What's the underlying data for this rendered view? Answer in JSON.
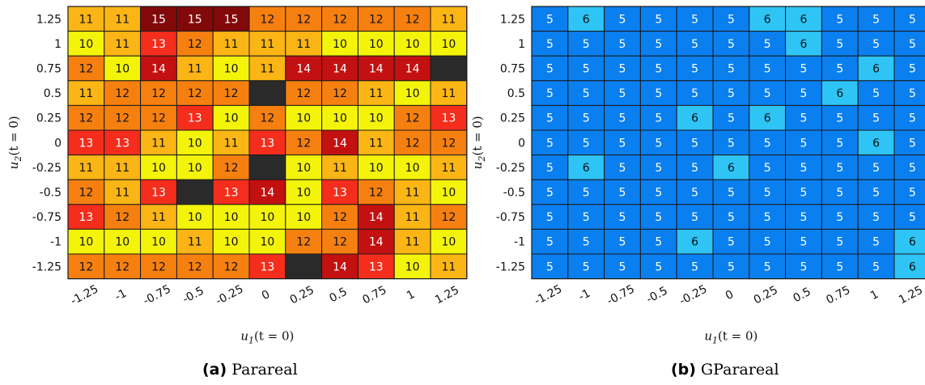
{
  "chart_data": [
    {
      "type": "heatmap",
      "caption_tag": "(a)",
      "caption": "Parareal",
      "xlabel": "u1(t = 0)",
      "ylabel": "u2(t = 0)",
      "xlabel_main": "u",
      "xlabel_sub": "1",
      "xlabel_rest": "(t = 0)",
      "ylabel_main": "u",
      "ylabel_sub": "2",
      "ylabel_rest": "(t = 0)",
      "x_ticks": [
        "-1.25",
        "-1",
        "-0.75",
        "-0.5",
        "-0.25",
        "0",
        "0.25",
        "0.5",
        "0.75",
        "1",
        "1.25"
      ],
      "y_ticks": [
        "1.25",
        "1",
        "0.75",
        "0.5",
        "0.25",
        "0",
        "-0.25",
        "-0.5",
        "-0.75",
        "-1",
        "-1.25"
      ],
      "values": [
        [
          11,
          11,
          15,
          15,
          15,
          12,
          12,
          12,
          12,
          12,
          11
        ],
        [
          10,
          11,
          13,
          12,
          11,
          11,
          11,
          10,
          10,
          10,
          10
        ],
        [
          12,
          10,
          14,
          11,
          10,
          11,
          14,
          14,
          14,
          14,
          null
        ],
        [
          11,
          12,
          12,
          12,
          12,
          null,
          12,
          12,
          11,
          10,
          11
        ],
        [
          12,
          12,
          12,
          13,
          10,
          12,
          10,
          10,
          10,
          12,
          13
        ],
        [
          13,
          13,
          11,
          10,
          11,
          13,
          12,
          14,
          11,
          12,
          12
        ],
        [
          11,
          11,
          10,
          10,
          12,
          null,
          10,
          11,
          10,
          10,
          11
        ],
        [
          12,
          11,
          13,
          null,
          13,
          14,
          10,
          13,
          12,
          11,
          10
        ],
        [
          13,
          12,
          11,
          10,
          10,
          10,
          10,
          12,
          14,
          11,
          12
        ],
        [
          10,
          10,
          10,
          11,
          10,
          10,
          12,
          12,
          14,
          11,
          10
        ],
        [
          12,
          12,
          12,
          12,
          12,
          13,
          null,
          14,
          13,
          10,
          11
        ]
      ],
      "color_scale": {
        "10": "#f4f40a",
        "11": "#fbb514",
        "12": "#f6800f",
        "13": "#f42d1c",
        "14": "#c31010",
        "15": "#820909",
        "missing": "#2a2a2a"
      },
      "label_color_scale": {
        "10": "#111111",
        "11": "#111111",
        "12": "#111111",
        "13": "#ffffff",
        "14": "#ffffff",
        "15": "#ffffff"
      }
    },
    {
      "type": "heatmap",
      "caption_tag": "(b)",
      "caption": "GParareal",
      "xlabel": "u1(t = 0)",
      "ylabel": "u2(t = 0)",
      "xlabel_main": "u",
      "xlabel_sub": "1",
      "xlabel_rest": "(t = 0)",
      "ylabel_main": "u",
      "ylabel_sub": "2",
      "ylabel_rest": "(t = 0)",
      "x_ticks": [
        "-1.25",
        "-1",
        "-0.75",
        "-0.5",
        "-0.25",
        "0",
        "0.25",
        "0.5",
        "0.75",
        "1",
        "1.25"
      ],
      "y_ticks": [
        "1.25",
        "1",
        "0.75",
        "0.5",
        "0.25",
        "0",
        "-0.25",
        "-0.5",
        "-0.75",
        "-1",
        "-1.25"
      ],
      "values": [
        [
          5,
          6,
          5,
          5,
          5,
          5,
          6,
          6,
          5,
          5,
          5
        ],
        [
          5,
          5,
          5,
          5,
          5,
          5,
          5,
          6,
          5,
          5,
          5
        ],
        [
          5,
          5,
          5,
          5,
          5,
          5,
          5,
          5,
          5,
          6,
          5
        ],
        [
          5,
          5,
          5,
          5,
          5,
          5,
          5,
          5,
          6,
          5,
          5
        ],
        [
          5,
          5,
          5,
          5,
          6,
          5,
          6,
          5,
          5,
          5,
          5
        ],
        [
          5,
          5,
          5,
          5,
          5,
          5,
          5,
          5,
          5,
          6,
          5
        ],
        [
          5,
          6,
          5,
          5,
          5,
          6,
          5,
          5,
          5,
          5,
          5
        ],
        [
          5,
          5,
          5,
          5,
          5,
          5,
          5,
          5,
          5,
          5,
          5
        ],
        [
          5,
          5,
          5,
          5,
          5,
          5,
          5,
          5,
          5,
          5,
          5
        ],
        [
          5,
          5,
          5,
          5,
          6,
          5,
          5,
          5,
          5,
          5,
          6
        ],
        [
          5,
          5,
          5,
          5,
          5,
          5,
          5,
          5,
          5,
          5,
          6
        ]
      ],
      "color_scale": {
        "5": "#0a7ff0",
        "6": "#2ec4f5",
        "missing": "#2a2a2a"
      },
      "label_color_scale": {
        "5": "#ffffff",
        "6": "#111111"
      }
    }
  ]
}
